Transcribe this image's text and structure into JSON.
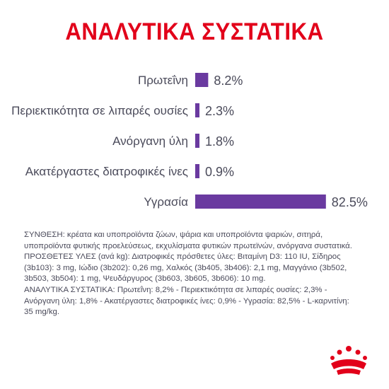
{
  "title": "ΑΝΑΛΥΤΙΚΑ ΣΥΣΤΑΤΙΚΑ",
  "colors": {
    "title": "#e2001a",
    "bar": "#6a3aa0",
    "text": "#4a4a5a",
    "logo": "#e2001a"
  },
  "chart_data": {
    "type": "bar",
    "orientation": "horizontal",
    "categories": [
      "Πρωτεΐνη",
      "Περιεκτικότητα σε λιπαρές ουσίες",
      "Ανόργανη ύλη",
      "Ακατέργαστες διατροφικές ίνες",
      "Υγρασία"
    ],
    "values": [
      8.2,
      2.3,
      1.8,
      0.9,
      82.5
    ],
    "value_labels": [
      "8.2%",
      "2.3%",
      "1.8%",
      "0.9%",
      "82.5%"
    ],
    "unit": "%",
    "xlim": [
      0,
      100
    ],
    "grid": false,
    "legend": "none"
  },
  "composition": {
    "line1": "ΣΥΝΘΕΣΗ: κρέατα και υποπροϊόντα ζώων, ψάρια και υποπροϊόντα ψαριών, σιτηρά,",
    "line2": "υποπροϊόντα φυτικής προελεύσεως, εκχυλίσματα φυτικών πρωτεϊνών, ανόργανα συστατικά.",
    "line3": "ΠΡΟΣΘΕΤΕΣ ΥΛΕΣ (ανά kg): Διατροφικές πρόσθετες ύλες: Βιταμίνη D3: 110 IU, Σίδηρος",
    "line4": "(3b103): 3 mg, Ιώδιο (3b202): 0,26 mg, Χαλκός (3b405, 3b406): 2,1 mg, Μαγγάνιο (3b502,",
    "line5": "3b503, 3b504): 1 mg, Ψευδάργυρος (3b603, 3b605, 3b606): 10 mg.",
    "line6": "ΑΝΑΛΥΤΙΚΑ ΣΥΣΤΑΤΙΚΑ: Πρωτεΐνη: 8,2% - Περιεκτικότητα σε λιπαρές ουσίες: 2,3% -",
    "line7": "Ανόργανη ύλη: 1,8% - Ακατέργαστες διατροφικές ίνες: 0,9% - Υγρασία: 82,5% - L-καρνιτίνη:",
    "line8": "35 mg/kg."
  },
  "logo_icon": "crown-icon"
}
